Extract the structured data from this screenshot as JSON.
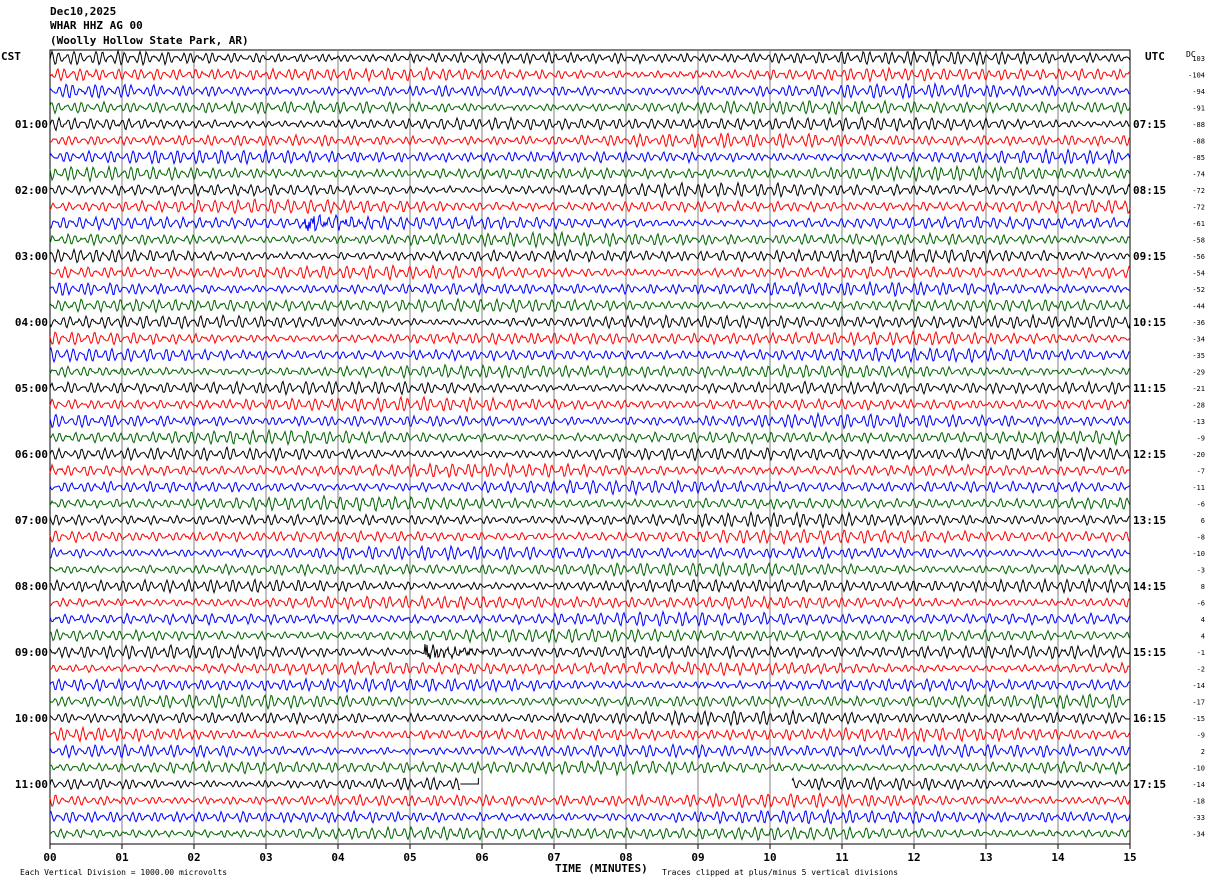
{
  "header": {
    "date": "Dec10,2025",
    "station": "WHAR HHZ AG 00",
    "location": "(Woolly Hollow State Park, AR)"
  },
  "left_zone": "CST",
  "right_zone": "UTC",
  "dc_label": "DC",
  "footer": {
    "scale": "Each Vertical Division = 1000.00 microvolts",
    "clip": "Traces clipped at plus/minus 5 vertical divisions"
  },
  "colors": {
    "cycle": [
      "#000000",
      "#ff0000",
      "#0000ff",
      "#006400"
    ],
    "grid": "#808080"
  },
  "chart_data": {
    "type": "line",
    "title": "",
    "xlabel": "TIME (MINUTES)",
    "ylabel": "",
    "xlim": [
      0,
      15
    ],
    "x_ticks": [
      "00",
      "01",
      "02",
      "03",
      "04",
      "05",
      "06",
      "07",
      "08",
      "09",
      "10",
      "11",
      "12",
      "13",
      "14",
      "15"
    ],
    "rows": 48,
    "left_hour_labels": [
      {
        "row": 4,
        "label": "01:00"
      },
      {
        "row": 8,
        "label": "02:00"
      },
      {
        "row": 12,
        "label": "03:00"
      },
      {
        "row": 16,
        "label": "04:00"
      },
      {
        "row": 20,
        "label": "05:00"
      },
      {
        "row": 24,
        "label": "06:00"
      },
      {
        "row": 28,
        "label": "07:00"
      },
      {
        "row": 32,
        "label": "08:00"
      },
      {
        "row": 36,
        "label": "09:00"
      },
      {
        "row": 40,
        "label": "10:00"
      },
      {
        "row": 44,
        "label": "11:00"
      }
    ],
    "right_hour_labels": [
      {
        "row": 4,
        "label": "07:15"
      },
      {
        "row": 8,
        "label": "08:15"
      },
      {
        "row": 12,
        "label": "09:15"
      },
      {
        "row": 16,
        "label": "10:15"
      },
      {
        "row": 20,
        "label": "11:15"
      },
      {
        "row": 24,
        "label": "12:15"
      },
      {
        "row": 28,
        "label": "13:15"
      },
      {
        "row": 32,
        "label": "14:15"
      },
      {
        "row": 36,
        "label": "15:15"
      },
      {
        "row": 40,
        "label": "16:15"
      },
      {
        "row": 44,
        "label": "17:15"
      }
    ],
    "dc_offsets": [
      "103",
      "-104",
      "-94",
      "-91",
      "-88",
      "-88",
      "-85",
      "-74",
      "-72",
      "-72",
      "-61",
      "-58",
      "-56",
      "-54",
      "-52",
      "-44",
      "-36",
      "-34",
      "-35",
      "-29",
      "-21",
      "-28",
      "-13",
      "-9",
      "-20",
      "-7",
      "-11",
      "-6",
      "6",
      "-8",
      "-10",
      "-3",
      "8",
      "-6",
      "4",
      "4",
      "-1",
      "-2",
      "-14",
      "-17",
      "-15",
      "-9",
      "2",
      "-10",
      "-14",
      "-18",
      "-33",
      "-34"
    ],
    "events": [
      {
        "row": 10,
        "minute_start": 3.5,
        "minute_end": 4.8,
        "note": "burst"
      },
      {
        "row": 36,
        "minute_start": 5.2,
        "minute_end": 6.2,
        "note": "burst"
      }
    ],
    "data_gap": {
      "row": 44,
      "minute_start": 5.7,
      "minute_end": 10.3
    }
  }
}
